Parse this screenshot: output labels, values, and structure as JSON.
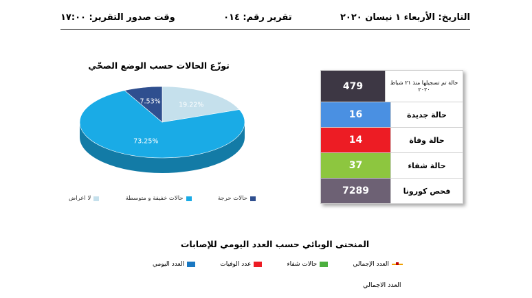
{
  "header": {
    "date": "التاريخ: الأربعاء ١ نيسان ٢٠٢٠",
    "report_number": "تقرير رقم: ٠١٤",
    "issue_time": "وقت صدور التقرير: ١٧:٠٠"
  },
  "pie": {
    "title": "توزّع الحالات حسب الوضع الصحّي",
    "slice_labels": [
      "19.22%",
      "73.25%",
      "7.53%"
    ],
    "legend": [
      {
        "label": "لا اعراض",
        "color": "#c5e0ec"
      },
      {
        "label": "حالات خفيفة و متوسطة",
        "color": "#1aabe6"
      },
      {
        "label": "حالات حرجة",
        "color": "#2f4f8f"
      }
    ]
  },
  "chart_data": {
    "type": "pie",
    "title": "توزّع الحالات حسب الوضع الصحّي",
    "slices": [
      {
        "label": "لا اعراض",
        "value": 19.22,
        "color": "#c5e0ec"
      },
      {
        "label": "حالات خفيفة و متوسطة",
        "value": 73.25,
        "color": "#1aabe6"
      },
      {
        "label": "حالات حرجة",
        "value": 7.53,
        "color": "#2f4f8f"
      }
    ],
    "legend_position": "bottom"
  },
  "stats": [
    {
      "label": "حالة تم تسجيلها منذ ٢١ شباط ٢٠٢٠",
      "value": "479",
      "color": "#3d3744"
    },
    {
      "label": "حالة جديدة",
      "value": "16",
      "color": "#4a90e2"
    },
    {
      "label": "حالة وفاة",
      "value": "14",
      "color": "#ed1c24"
    },
    {
      "label": "حالة شفاء",
      "value": "37",
      "color": "#8dc63f"
    },
    {
      "label": "فحص كورونا",
      "value": "7289",
      "color": "#6d6174"
    }
  ],
  "line_chart": {
    "title": "المنحنى الوبائي حسب العدد اليومي للإصابات",
    "legend": [
      {
        "label": "العدد الإجمالي",
        "kind": "line",
        "color": "#f0a000"
      },
      {
        "label": "حالات شفاء",
        "kind": "box",
        "color": "#4caf3e"
      },
      {
        "label": "عدد الوفيات",
        "kind": "box",
        "color": "#ed1c24"
      },
      {
        "label": "العدد اليومي",
        "kind": "box",
        "color": "#1a78c2"
      }
    ],
    "axis_label": "العدد الاجمالي"
  }
}
